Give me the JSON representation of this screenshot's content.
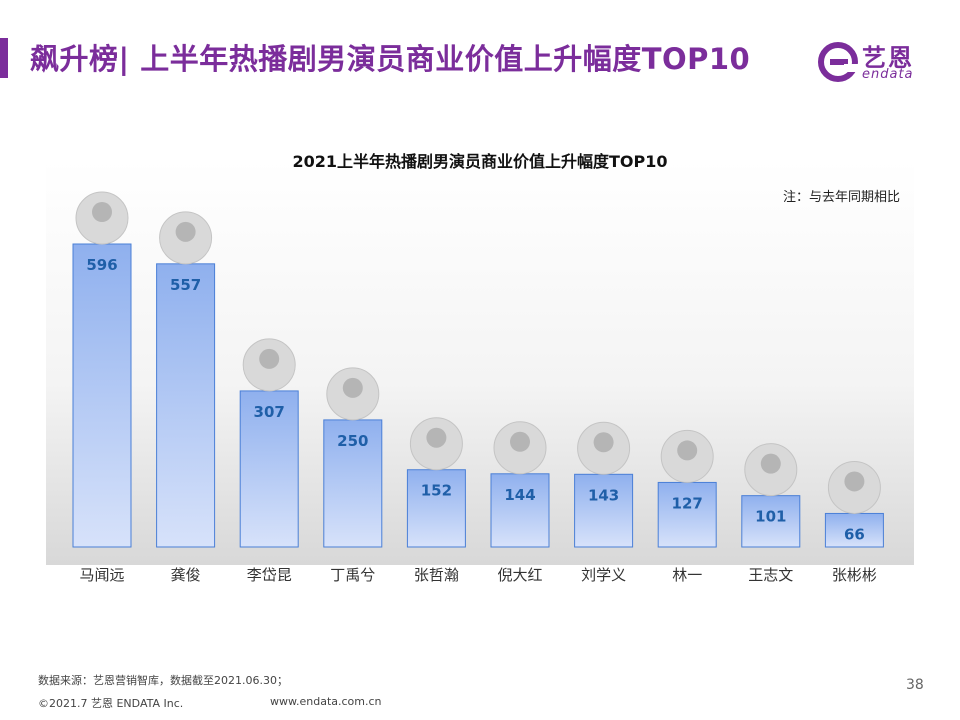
{
  "header": {
    "title": "飙升榜| 上半年热播剧男演员商业价值上升幅度TOP10",
    "logo_cn": "艺恩",
    "logo_en": "endata"
  },
  "chart_data": {
    "type": "bar",
    "title": "2021上半年热播剧男演员商业价值上升幅度TOP10",
    "note": "注：与去年同期相比",
    "categories": [
      "马闻远",
      "龚俊",
      "李岱昆",
      "丁禹兮",
      "张哲瀚",
      "倪大红",
      "刘学义",
      "林一",
      "王志文",
      "张彬彬"
    ],
    "values": [
      596,
      557,
      307,
      250,
      152,
      144,
      143,
      127,
      101,
      66
    ],
    "ylim": [
      0,
      650
    ],
    "grid": false,
    "bar_color_top": "#8fb0ee",
    "bar_color_bottom": "#d7e2fa",
    "label_color": "#1f5fa8"
  },
  "footer": {
    "source": "数据来源：艺恩营销智库，数据截至2021.06.30；",
    "copyright": "©2021.7 艺恩 ENDATA Inc.",
    "url": "www.endata.com.cn",
    "page_number": "38"
  },
  "colors": {
    "brand": "#7b2d9b"
  }
}
